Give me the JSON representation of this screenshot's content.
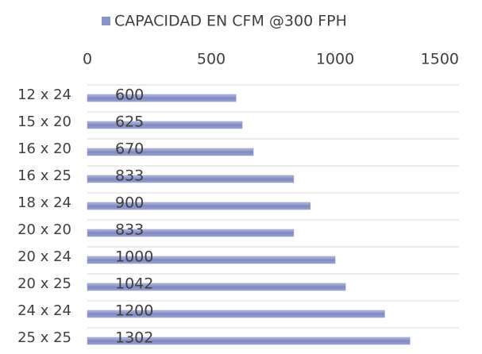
{
  "chart_data": {
    "type": "bar",
    "orientation": "horizontal",
    "categories": [
      "12 x 24",
      "15 x 20",
      "16 x 20",
      "16 x 25",
      "18 x 24",
      "20 x 20",
      "20 x 24",
      "20 x 25",
      "24 x 24",
      "25 x 25"
    ],
    "series": [
      {
        "name": "CAPACIDAD EN CFM @300 FPH",
        "color": "#8a93c6",
        "values": [
          600,
          625,
          670,
          833,
          900,
          833,
          1000,
          1042,
          1200,
          1302
        ]
      }
    ],
    "xlim": [
      0,
      1500
    ],
    "xticks": [
      0,
      500,
      1000,
      1500
    ],
    "grid": true,
    "legend": "top"
  }
}
